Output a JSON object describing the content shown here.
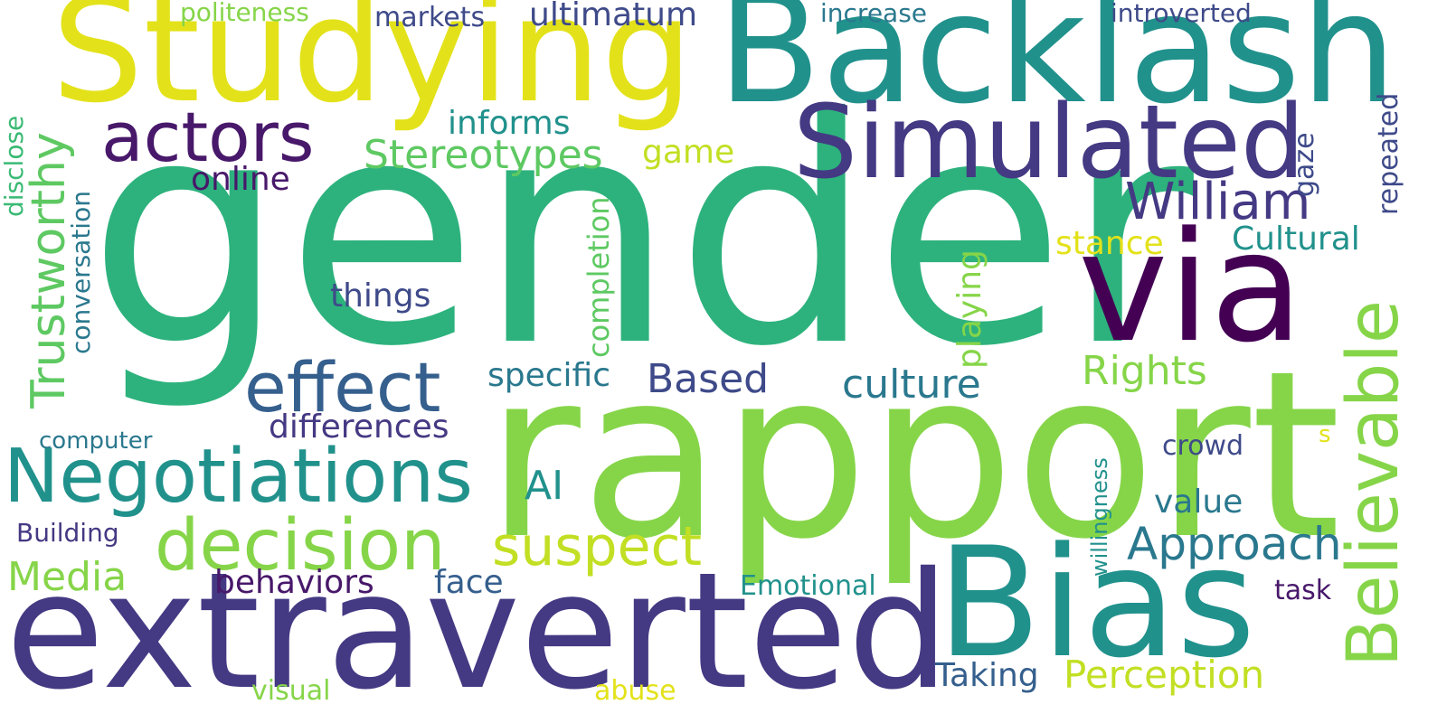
{
  "palette": {
    "background": "#ffffff",
    "yellow": "#e3e21a",
    "lime": "#c2df23",
    "light_green": "#86d549",
    "green": "#5ec962",
    "green_teal": "#3bba75",
    "emerald": "#2db27d",
    "teal": "#21918c",
    "teal_blue": "#2a788e",
    "blue": "#355f8d",
    "indigo": "#3e4a89",
    "purple": "#443983",
    "dark_purple": "#48186a",
    "deep_purple": "#440154"
  },
  "words": {
    "gender": "gender",
    "rapport": "rapport",
    "extraverted": "extraverted",
    "Backlash": "Backlash",
    "Studying": "Studying",
    "Bias": "Bias",
    "via": "via",
    "Simulated": "Simulated",
    "Negotiations": "Negotiations",
    "decision": "decision",
    "actors": "actors",
    "effect": "effect",
    "Believable": "Believable",
    "suspect": "suspect",
    "William": "William",
    "Trustworthy": "Trustworthy",
    "Approach": "Approach",
    "Stereotypes": "Stereotypes",
    "Media": "Media",
    "Rights": "Rights",
    "Perception": "Perception",
    "culture": "culture",
    "Based": "Based",
    "AI": "AI",
    "ultimatum": "ultimatum",
    "informs": "informs",
    "differences": "differences",
    "specific": "specific",
    "Cultural": "Cultural",
    "things": "things",
    "behaviors": "behaviors",
    "online": "online",
    "game": "game",
    "face": "face",
    "value": "value",
    "Taking": "Taking",
    "stance": "stance",
    "completion": "completion",
    "playing": "playing",
    "gaze": "gaze",
    "repeated": "repeated",
    "conversation": "conversation",
    "Emotional": "Emotional",
    "crowd": "crowd",
    "computer": "computer",
    "Building": "Building",
    "markets": "markets",
    "increase": "increase",
    "introverted": "introverted",
    "politeness": "politeness",
    "disclose": "disclose",
    "willingness": "willingness",
    "task": "task",
    "visual": "visual",
    "abuse": "abuse",
    "s": "s"
  }
}
